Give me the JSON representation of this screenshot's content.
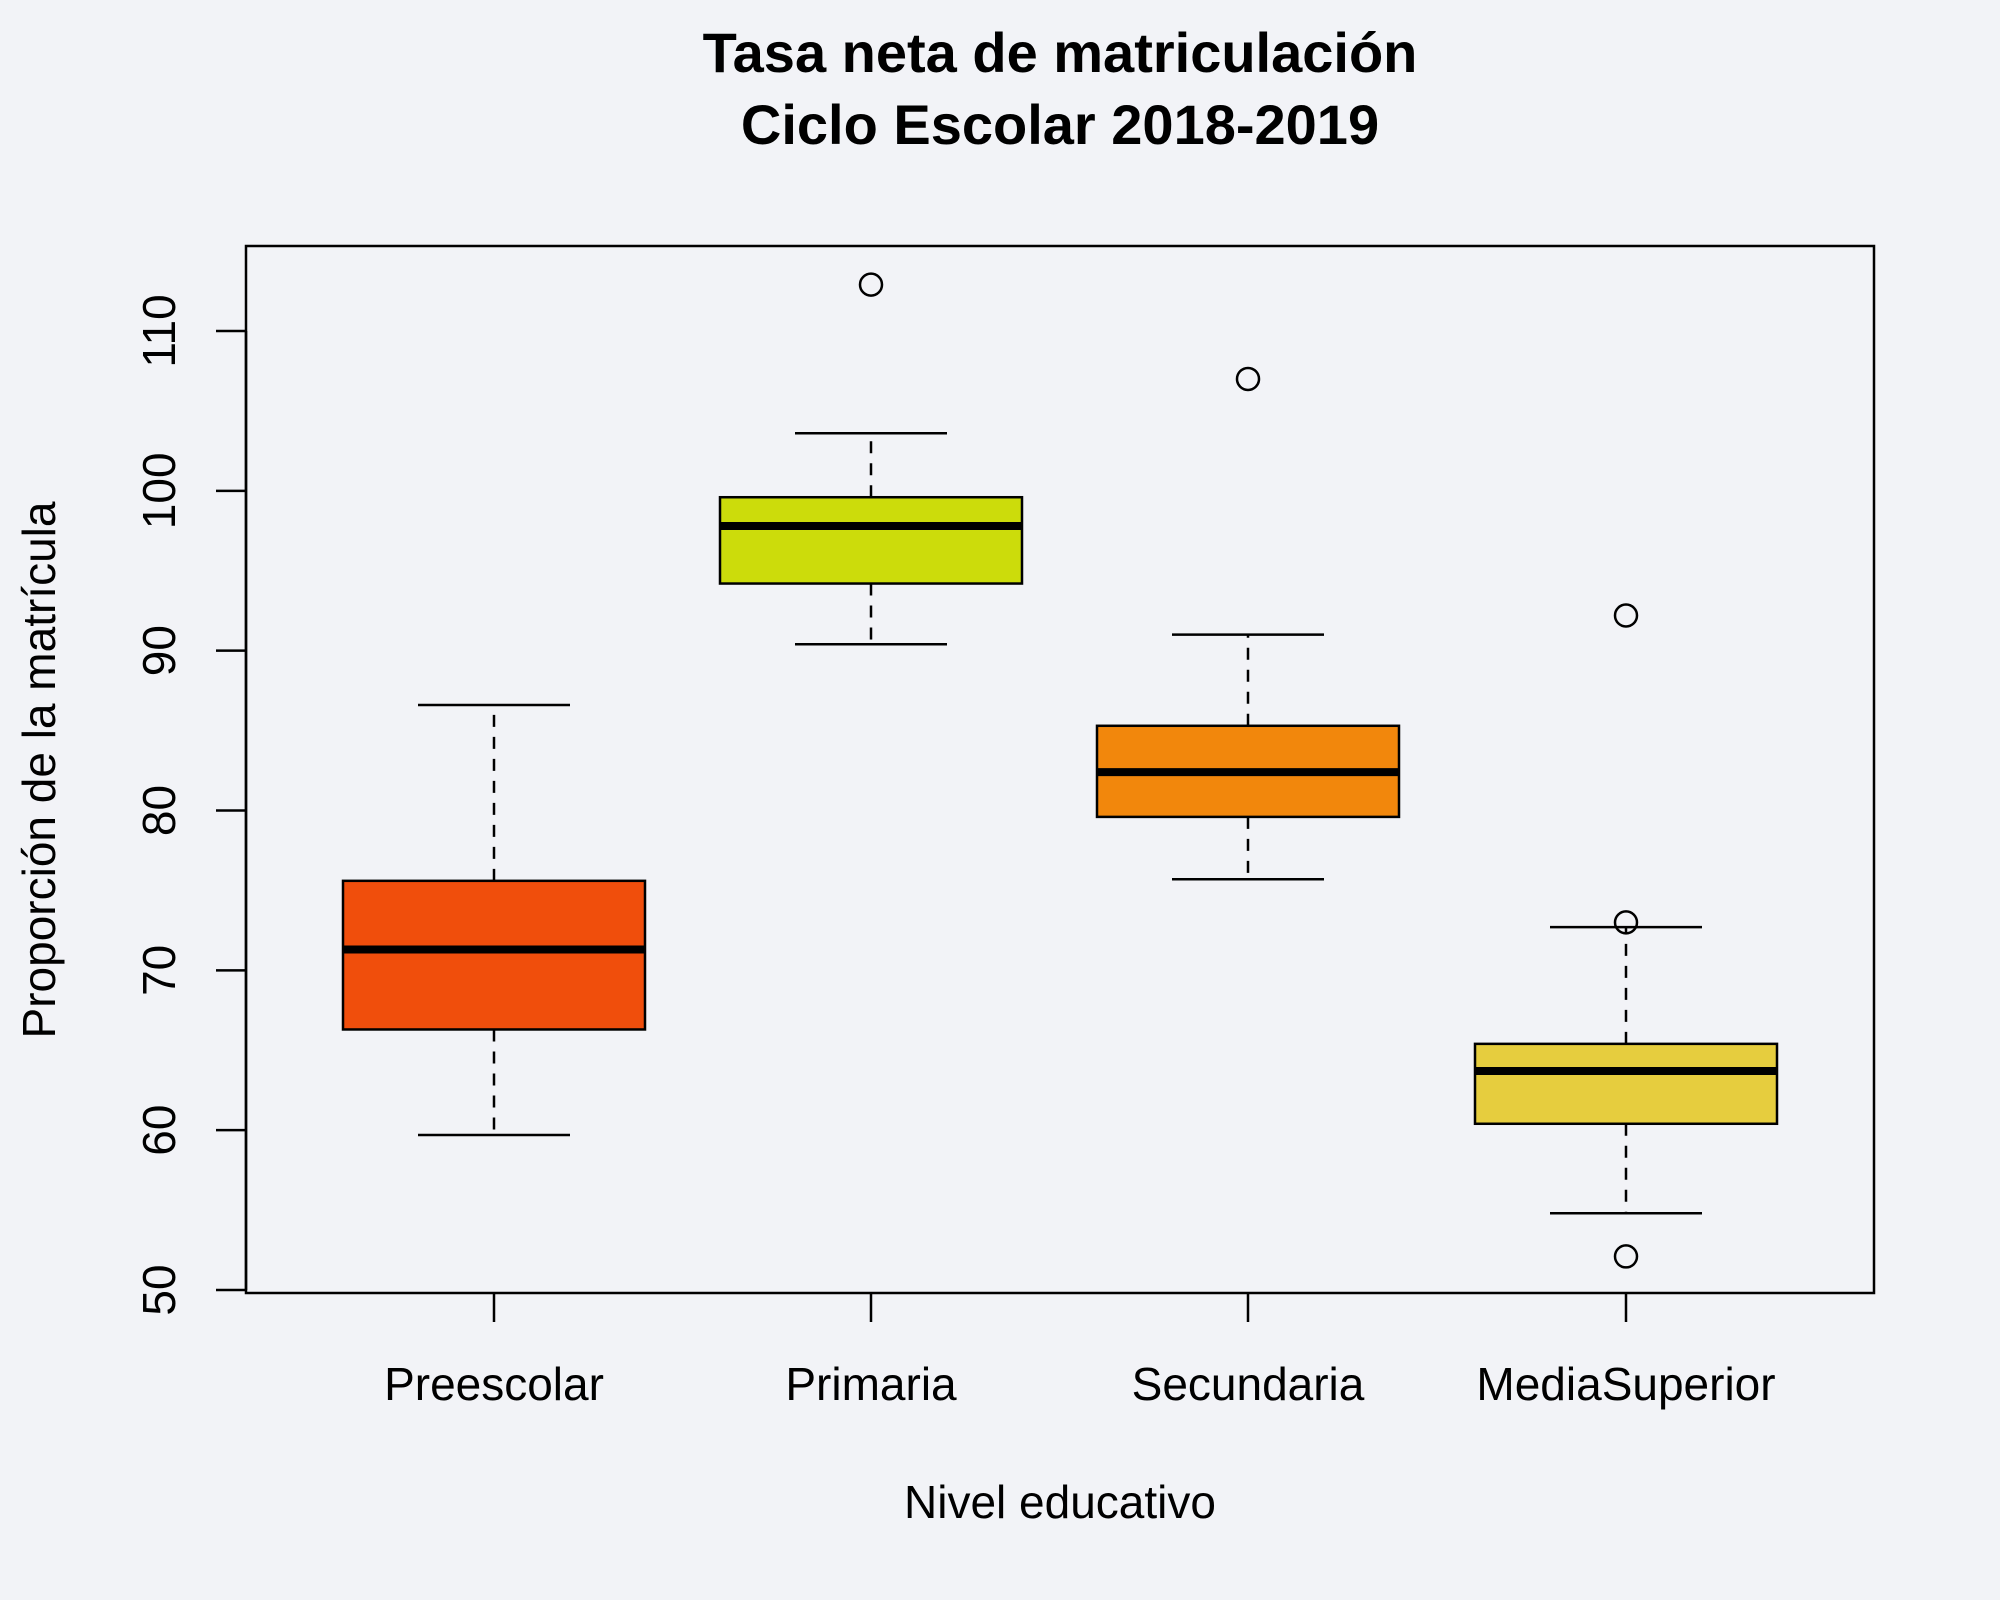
{
  "chart_data": {
    "type": "boxplot",
    "title": [
      "Tasa neta de matriculación",
      "Ciclo Escolar 2018-2019"
    ],
    "xlabel": "Nivel educativo",
    "ylabel": "Proporción de la matrícula",
    "ylim": [
      50,
      115
    ],
    "yticks": [
      "50",
      "60",
      "70",
      "80",
      "90",
      "100",
      "110"
    ],
    "categories": [
      "Preescolar",
      "Primaria",
      "Secundaria",
      "MediaSuperior"
    ],
    "grid": false,
    "legend": "none",
    "boxes": [
      {
        "name": "Preescolar",
        "min": 59.7,
        "q1": 66.3,
        "median": 71.3,
        "q3": 75.6,
        "max": 86.6,
        "outliers": [],
        "color": "#f04e0c"
      },
      {
        "name": "Primaria",
        "min": 90.4,
        "q1": 94.2,
        "median": 97.8,
        "q3": 99.6,
        "max": 103.6,
        "outliers": [
          112.9
        ],
        "color": "#ccdc0b"
      },
      {
        "name": "Secundaria",
        "min": 75.7,
        "q1": 79.6,
        "median": 82.4,
        "q3": 85.3,
        "max": 91.0,
        "outliers": [
          107.0
        ],
        "color": "#f2870c"
      },
      {
        "name": "MediaSuperior",
        "min": 54.8,
        "q1": 60.4,
        "median": 63.7,
        "q3": 65.4,
        "max": 72.7,
        "outliers": [
          92.2,
          73.0,
          52.1
        ],
        "color": "#e6cd3e"
      }
    ]
  }
}
